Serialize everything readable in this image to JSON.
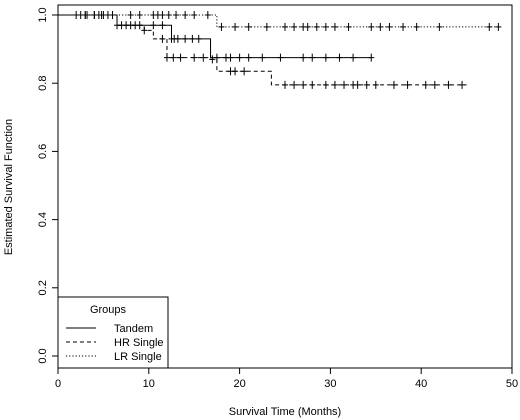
{
  "chart_data": {
    "type": "line",
    "subtype": "kaplan-meier",
    "xlabel": "Survival Time (Months)",
    "ylabel": "Estimated Survival Function",
    "xlim": [
      0,
      50
    ],
    "ylim": [
      0,
      1
    ],
    "x_ticks": [
      "0",
      "10",
      "20",
      "30",
      "40",
      "50"
    ],
    "y_ticks": [
      "0.0",
      "0.2",
      "0.4",
      "0.6",
      "0.8",
      "1.0"
    ],
    "grid": false,
    "legend": {
      "title": "Groups",
      "position": "bottom-left",
      "entries": [
        "Tandem",
        "HR Single",
        "LR Single"
      ]
    },
    "series": [
      {
        "name": "Tandem",
        "line_style": "solid",
        "steps": [
          [
            0,
            1.0
          ],
          [
            6.5,
            0.97
          ],
          [
            12.5,
            0.93
          ],
          [
            16.8,
            0.875
          ],
          [
            34.5,
            0.875
          ]
        ],
        "censored": [
          2.5,
          3.2,
          4,
          4.8,
          5.5,
          7,
          8,
          9,
          10.5,
          11.5,
          12.5,
          12.8,
          13.2,
          14,
          14.8,
          15.5,
          17.5,
          18.5,
          19,
          20,
          21,
          22.5,
          24.5,
          27,
          28,
          29.5,
          31,
          32.5,
          34.5
        ]
      },
      {
        "name": "HR Single",
        "line_style": "dashed",
        "steps": [
          [
            0,
            1.0
          ],
          [
            6.5,
            0.97
          ],
          [
            9.5,
            0.955
          ],
          [
            10.5,
            0.93
          ],
          [
            12,
            0.875
          ],
          [
            16.5,
            0.87
          ],
          [
            17.5,
            0.835
          ],
          [
            23.5,
            0.795
          ],
          [
            45,
            0.795
          ]
        ],
        "censored": [
          2,
          3,
          4,
          5,
          6.5,
          7.5,
          8.5,
          9.5,
          11.5,
          12,
          12.7,
          13.5,
          15,
          16,
          17,
          19,
          19.5,
          20.5,
          25,
          26,
          27,
          28,
          29.5,
          30.5,
          31.5,
          32.5,
          33,
          34,
          35,
          37,
          38.5,
          40.5,
          41.5,
          43,
          44.5
        ]
      },
      {
        "name": "LR Single",
        "line_style": "dotted",
        "steps": [
          [
            0,
            1.0
          ],
          [
            17.5,
            0.965
          ],
          [
            48.5,
            0.965
          ]
        ],
        "censored": [
          3,
          4.5,
          6,
          8,
          9,
          10.5,
          11,
          11.5,
          12.2,
          13,
          14,
          15,
          16.5,
          18,
          19.5,
          21,
          23,
          25,
          26,
          27,
          27.5,
          28.5,
          29.5,
          30.5,
          32,
          34.5,
          35.5,
          36.5,
          38,
          39.5,
          42,
          47.5,
          48.5
        ]
      }
    ]
  }
}
